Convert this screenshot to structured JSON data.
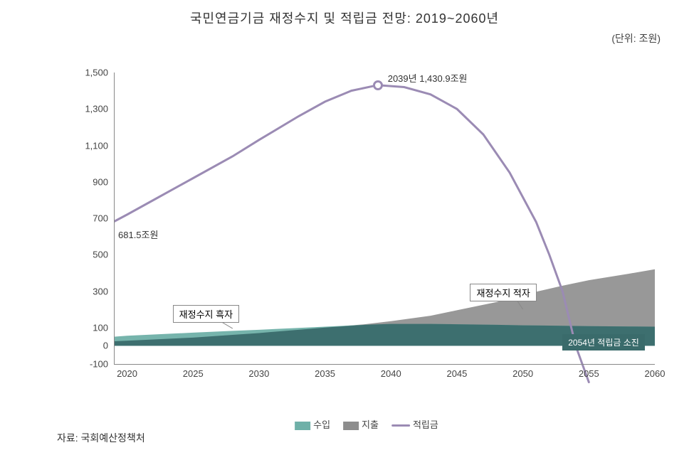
{
  "title": "국민연금기금 재정수지 및 적립금 전망: 2019~2060년",
  "unit": "(단위: 조원)",
  "source": "자료: 국회예산정책처",
  "chart": {
    "type": "area+line",
    "background_color": "#ffffff",
    "x": {
      "min": 2019,
      "max": 2060,
      "ticks": [
        2020,
        2025,
        2030,
        2035,
        2040,
        2045,
        2050,
        2055,
        2060
      ],
      "fontsize": 13
    },
    "y": {
      "min": -100,
      "max": 1500,
      "ticks": [
        -100,
        0,
        100,
        300,
        500,
        700,
        900,
        1100,
        1300,
        1500
      ],
      "fontsize": 13
    },
    "axis_color": "#888888",
    "series": {
      "income": {
        "label": "수입",
        "color": "#6fb0a8",
        "fill_to": 0,
        "values": {
          "2019": 50,
          "2020": 55,
          "2022": 62,
          "2025": 72,
          "2028": 82,
          "2030": 88,
          "2033": 98,
          "2035": 105,
          "2038": 115,
          "2040": 120,
          "2043": 120,
          "2045": 118,
          "2048": 115,
          "2050": 112,
          "2053": 110,
          "2055": 108,
          "2058": 106,
          "2060": 105
        }
      },
      "expenditure": {
        "label": "지출",
        "color": "#8d8d8d",
        "fill_to": 0,
        "values": {
          "2019": 25,
          "2020": 28,
          "2025": 45,
          "2030": 70,
          "2035": 100,
          "2038": 118,
          "2040": 135,
          "2043": 165,
          "2045": 195,
          "2048": 240,
          "2050": 280,
          "2053": 330,
          "2055": 360,
          "2058": 395,
          "2060": 420
        }
      },
      "reserve": {
        "label": "적립금",
        "color": "#9b8bb4",
        "line_width": 3,
        "values": {
          "2019": 681.5,
          "2020": 720,
          "2022": 800,
          "2025": 920,
          "2028": 1040,
          "2030": 1130,
          "2033": 1260,
          "2035": 1340,
          "2037": 1400,
          "2039": 1430.9,
          "2041": 1420,
          "2043": 1380,
          "2045": 1300,
          "2047": 1160,
          "2049": 950,
          "2051": 680,
          "2052": 500,
          "2053": 300,
          "2054": 0,
          "2055": -200
        }
      }
    },
    "peak": {
      "year": 2039,
      "value": 1430.9,
      "label": "2039년 1,430.9조원"
    },
    "start_label": "681.5조원",
    "annotations": {
      "surplus": {
        "label": "재정수지 흑자",
        "pointer_to_year": 2028
      },
      "deficit": {
        "label": "재정수지 적자",
        "pointer_to_year": 2050
      },
      "depletion": {
        "label": "2054년 적립금 소진",
        "year": 2054
      }
    },
    "legend": [
      {
        "kind": "swatch",
        "label_key": "series.income.label",
        "color": "#6fb0a8"
      },
      {
        "kind": "swatch",
        "label_key": "series.expenditure.label",
        "color": "#8d8d8d"
      },
      {
        "kind": "line",
        "label_key": "series.reserve.label",
        "color": "#9b8bb4"
      }
    ]
  }
}
